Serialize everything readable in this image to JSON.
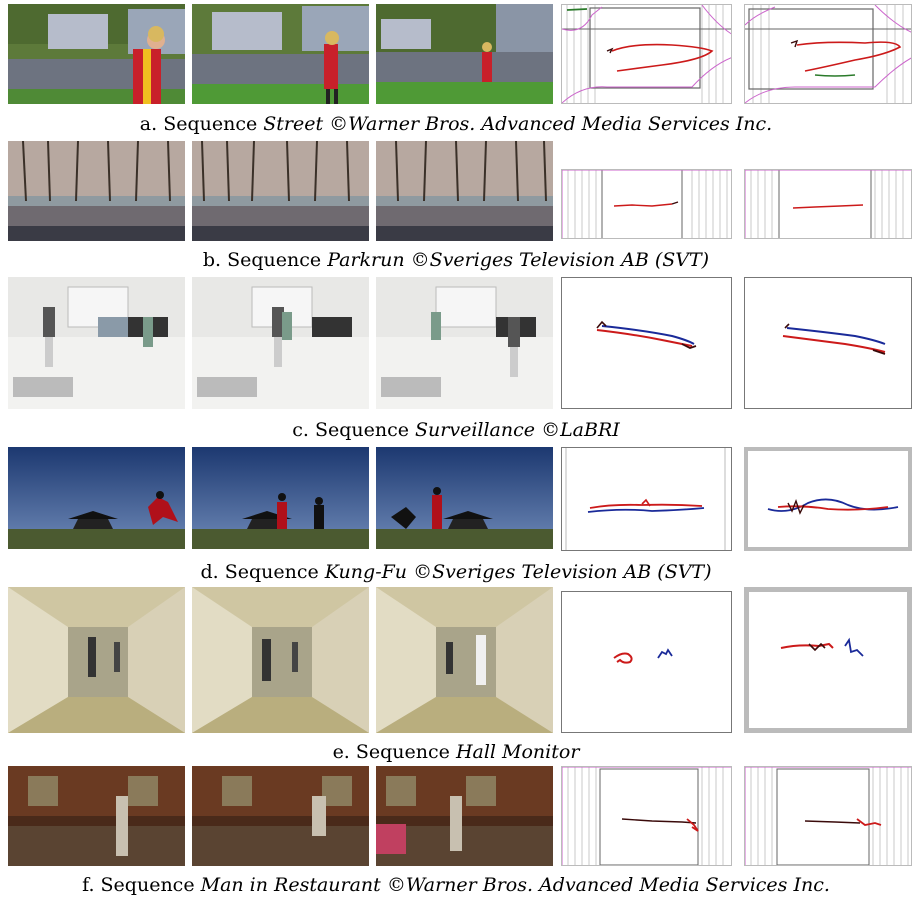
{
  "rows": [
    {
      "id": "a",
      "prefix": "a. Sequence ",
      "name": "Street",
      "credit_symbol": "©",
      "credit": "Warner Bros. Advanced Media Services Inc."
    },
    {
      "id": "b",
      "prefix": "b. Sequence ",
      "name": "Parkrun",
      "credit_symbol": "©",
      "credit": "Sveriges Television AB (SVT)"
    },
    {
      "id": "c",
      "prefix": "c. Sequence ",
      "name": "Surveillance",
      "credit_symbol": "©",
      "credit": "LaBRI"
    },
    {
      "id": "d",
      "prefix": "d. Sequence ",
      "name": "Kung-Fu",
      "credit_symbol": "©",
      "credit": "Sveriges Television AB (SVT)"
    },
    {
      "id": "e",
      "prefix": "e. Sequence ",
      "name": "Hall Monitor",
      "credit_symbol": "",
      "credit": ""
    },
    {
      "id": "f",
      "prefix": "f. Sequence ",
      "name": "Man in Restaurant",
      "credit_symbol": "©",
      "credit": "Warner Bros. Advanced Media Services Inc."
    }
  ],
  "colors": {
    "trajectory_red": "#cc1a1a",
    "trajectory_blue": "#1a2a99",
    "trajectory_dark": "#3a0a0a",
    "mosaic_lines": "#c8c8c8",
    "mosaic_border": "#cc66cc",
    "trajectory_green": "#2a7a2a"
  }
}
